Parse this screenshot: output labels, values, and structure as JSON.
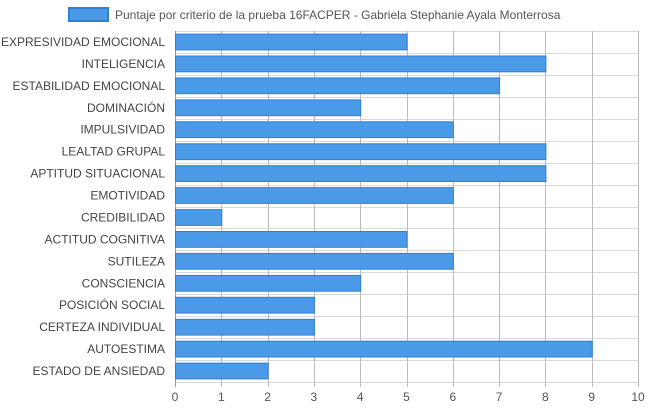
{
  "chart_data": {
    "type": "bar",
    "orientation": "horizontal",
    "legend": {
      "position": "top",
      "entries": [
        "Puntaje por criterio de la prueba 16FACPER - Gabriela Stephanie Ayala Monterrosa"
      ]
    },
    "categories": [
      "EXPRESIVIDAD EMOCIONAL",
      "INTELIGENCIA",
      "ESTABILIDAD EMOCIONAL",
      "DOMINACIÓN",
      "IMPULSIVIDAD",
      "LEALTAD GRUPAL",
      "APTITUD SITUACIONAL",
      "EMOTIVIDAD",
      "CREDIBILIDAD",
      "ACTITUD COGNITIVA",
      "SUTILEZA",
      "CONSCIENCIA",
      "POSICIÓN SOCIAL",
      "CERTEZA INDIVIDUAL",
      "AUTOESTIMA",
      "ESTADO DE ANSIEDAD"
    ],
    "series": [
      {
        "name": "Puntaje por criterio de la prueba 16FACPER - Gabriela Stephanie Ayala Monterrosa",
        "values": [
          5,
          8,
          7,
          4,
          6,
          8,
          8,
          6,
          1,
          5,
          6,
          4,
          3,
          3,
          9,
          2
        ]
      }
    ],
    "xlim": [
      0,
      10
    ],
    "xticks": [
      "0",
      "1",
      "2",
      "3",
      "4",
      "5",
      "6",
      "7",
      "8",
      "9",
      "10"
    ],
    "grid": true,
    "colors": {
      "bar_fill": "#4a9ae8",
      "bar_stroke": "#2f7fd8"
    }
  }
}
